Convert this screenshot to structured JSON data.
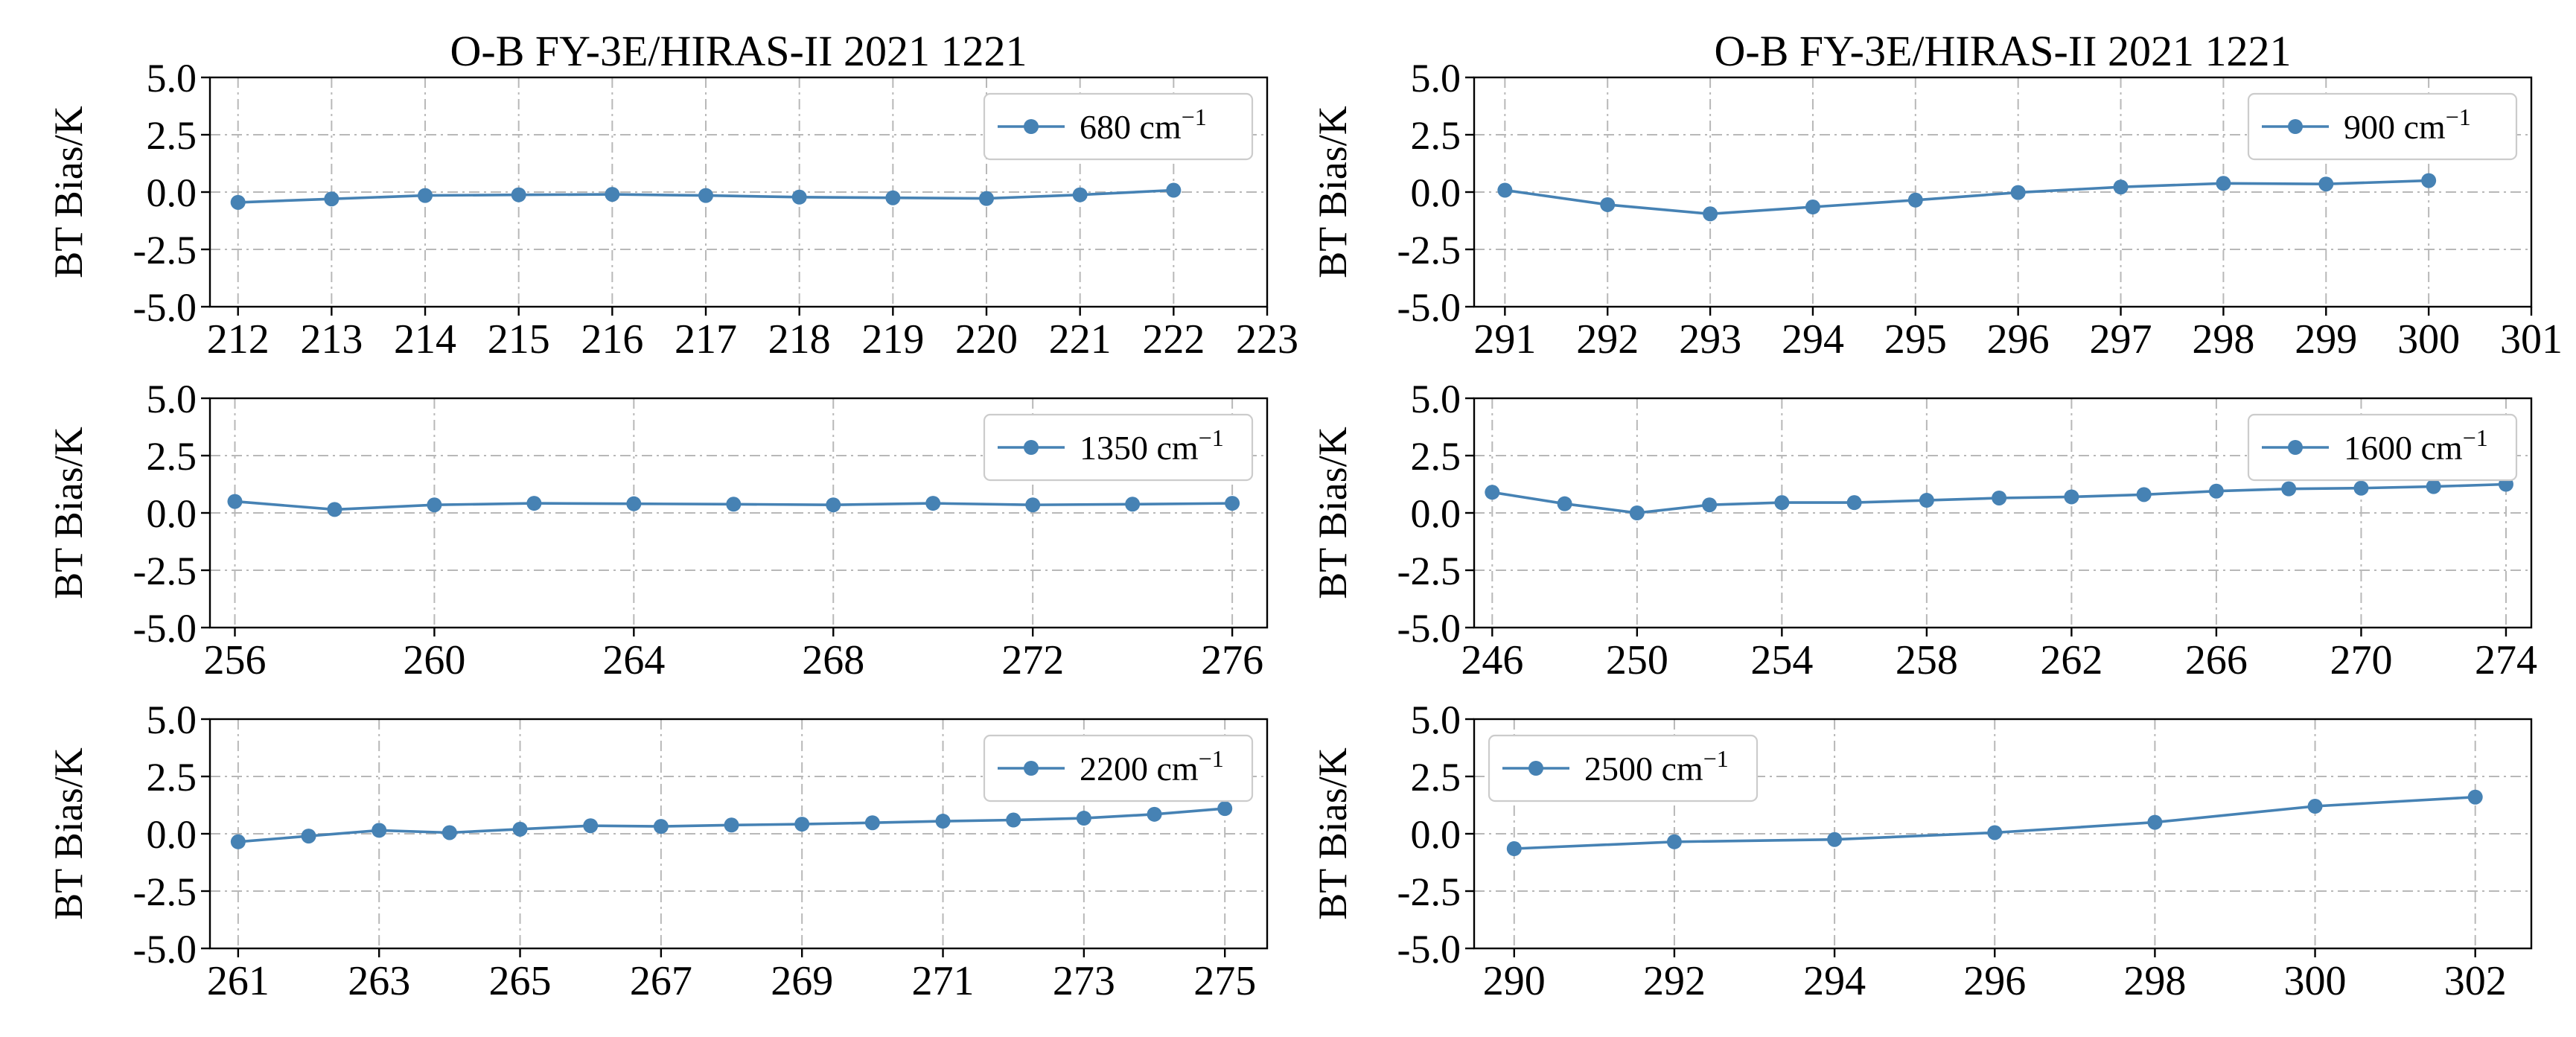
{
  "figure": {
    "color": "#4682b4"
  },
  "chart_data": [
    {
      "type": "line",
      "title": "O-B FY-3E/HIRAS-II 2021 1221",
      "ylabel": "BT Bias/K",
      "xlabel": "",
      "legend": {
        "label": "680 cm",
        "superscript": "−1",
        "position": "top-right"
      },
      "xlim": [
        211.7,
        223
      ],
      "ylim": [
        -5.0,
        5.0
      ],
      "x_ticks": [
        212,
        213,
        214,
        215,
        216,
        217,
        218,
        219,
        220,
        221,
        222,
        223
      ],
      "x_tick_labels": [
        "212",
        "213",
        "214",
        "215",
        "216",
        "217",
        "218",
        "219",
        "220",
        "221",
        "222",
        "223"
      ],
      "y_ticks": [
        5.0,
        2.5,
        0.0,
        -2.5,
        -5.0
      ],
      "y_tick_labels": [
        "5.0",
        "2.5",
        "0.0",
        "-2.5",
        "-5.0"
      ],
      "grid": true,
      "series": [
        {
          "name": "680 cm⁻¹",
          "x": [
            212,
            213,
            214,
            215,
            216,
            217,
            218,
            219,
            220,
            221,
            222
          ],
          "y": [
            -0.45,
            -0.3,
            -0.15,
            -0.12,
            -0.1,
            -0.15,
            -0.22,
            -0.25,
            -0.28,
            -0.12,
            0.08
          ]
        }
      ]
    },
    {
      "type": "line",
      "title": "O-B FY-3E/HIRAS-II 2021 1221",
      "ylabel": "BT Bias/K",
      "xlabel": "",
      "legend": {
        "label": "900 cm",
        "superscript": "−1",
        "position": "top-right"
      },
      "xlim": [
        290.7,
        301
      ],
      "ylim": [
        -5.0,
        5.0
      ],
      "x_ticks": [
        291,
        292,
        293,
        294,
        295,
        296,
        297,
        298,
        299,
        300,
        301
      ],
      "x_tick_labels": [
        "291",
        "292",
        "293",
        "294",
        "295",
        "296",
        "297",
        "298",
        "299",
        "300",
        "301"
      ],
      "y_ticks": [
        5.0,
        2.5,
        0.0,
        -2.5,
        -5.0
      ],
      "y_tick_labels": [
        "5.0",
        "2.5",
        "0.0",
        "-2.5",
        "-5.0"
      ],
      "grid": true,
      "series": [
        {
          "name": "900 cm⁻¹",
          "x": [
            291,
            292,
            293,
            294,
            295,
            296,
            297,
            298,
            299,
            300
          ],
          "y": [
            0.08,
            -0.55,
            -0.95,
            -0.65,
            -0.35,
            -0.02,
            0.22,
            0.38,
            0.35,
            0.5
          ]
        }
      ]
    },
    {
      "type": "line",
      "title": "",
      "ylabel": "BT Bias/K",
      "xlabel": "",
      "legend": {
        "label": "1350 cm",
        "superscript": "−1",
        "position": "top-right"
      },
      "xlim": [
        255.5,
        276.7
      ],
      "ylim": [
        -5.0,
        5.0
      ],
      "x_ticks": [
        256,
        260,
        264,
        268,
        272,
        276
      ],
      "x_tick_labels": [
        "256",
        "260",
        "264",
        "268",
        "272",
        "276"
      ],
      "y_ticks": [
        5.0,
        2.5,
        0.0,
        -2.5,
        -5.0
      ],
      "y_tick_labels": [
        "5.0",
        "2.5",
        "0.0",
        "-2.5",
        "-5.0"
      ],
      "grid": true,
      "series": [
        {
          "name": "1350 cm⁻¹",
          "x": [
            256,
            258,
            260,
            262,
            264,
            266,
            268,
            270,
            272,
            274,
            276
          ],
          "y": [
            0.5,
            0.15,
            0.35,
            0.42,
            0.4,
            0.38,
            0.35,
            0.42,
            0.35,
            0.38,
            0.42
          ]
        }
      ]
    },
    {
      "type": "line",
      "title": "",
      "ylabel": "BT Bias/K",
      "xlabel": "",
      "legend": {
        "label": "1600 cm",
        "superscript": "−1",
        "position": "top-right"
      },
      "xlim": [
        245.5,
        274.7
      ],
      "ylim": [
        -5.0,
        5.0
      ],
      "x_ticks": [
        246,
        250,
        254,
        258,
        262,
        266,
        270,
        274
      ],
      "x_tick_labels": [
        "246",
        "250",
        "254",
        "258",
        "262",
        "266",
        "270",
        "274"
      ],
      "y_ticks": [
        5.0,
        2.5,
        0.0,
        -2.5,
        -5.0
      ],
      "y_tick_labels": [
        "5.0",
        "2.5",
        "0.0",
        "-2.5",
        "-5.0"
      ],
      "grid": true,
      "series": [
        {
          "name": "1600 cm⁻¹",
          "x": [
            246,
            248,
            250,
            252,
            254,
            256,
            258,
            260,
            262,
            264,
            266,
            268,
            270,
            272,
            274
          ],
          "y": [
            0.9,
            0.4,
            0.0,
            0.35,
            0.45,
            0.45,
            0.55,
            0.65,
            0.7,
            0.8,
            0.95,
            1.05,
            1.08,
            1.15,
            1.25
          ]
        }
      ]
    },
    {
      "type": "line",
      "title": "",
      "ylabel": "BT Bias/K",
      "xlabel": "",
      "legend": {
        "label": "2200 cm",
        "superscript": "−1",
        "position": "top-right"
      },
      "xlim": [
        260.6,
        275.6
      ],
      "ylim": [
        -5.0,
        5.0
      ],
      "x_ticks": [
        261,
        263,
        265,
        267,
        269,
        271,
        273,
        275
      ],
      "x_tick_labels": [
        "261",
        "263",
        "265",
        "267",
        "269",
        "271",
        "273",
        "275"
      ],
      "y_ticks": [
        5.0,
        2.5,
        0.0,
        -2.5,
        -5.0
      ],
      "y_tick_labels": [
        "5.0",
        "2.5",
        "0.0",
        "-2.5",
        "-5.0"
      ],
      "grid": true,
      "series": [
        {
          "name": "2200 cm⁻¹",
          "x": [
            261,
            262,
            263,
            264,
            265,
            266,
            267,
            268,
            269,
            270,
            271,
            272,
            273,
            274,
            275
          ],
          "y": [
            -0.35,
            -0.1,
            0.15,
            0.05,
            0.2,
            0.35,
            0.32,
            0.38,
            0.42,
            0.48,
            0.55,
            0.6,
            0.68,
            0.85,
            1.1
          ]
        }
      ]
    },
    {
      "type": "line",
      "title": "",
      "ylabel": "BT Bias/K",
      "xlabel": "",
      "legend": {
        "label": "2500 cm",
        "superscript": "−1",
        "position": "top-left"
      },
      "xlim": [
        289.5,
        302.7
      ],
      "ylim": [
        -5.0,
        5.0
      ],
      "x_ticks": [
        290,
        292,
        294,
        296,
        298,
        300,
        302
      ],
      "x_tick_labels": [
        "290",
        "292",
        "294",
        "296",
        "298",
        "300",
        "302"
      ],
      "y_ticks": [
        5.0,
        2.5,
        0.0,
        -2.5,
        -5.0
      ],
      "y_tick_labels": [
        "5.0",
        "2.5",
        "0.0",
        "-2.5",
        "-5.0"
      ],
      "grid": true,
      "series": [
        {
          "name": "2500 cm⁻¹",
          "x": [
            290,
            292,
            294,
            296,
            298,
            300,
            302
          ],
          "y": [
            -0.65,
            -0.35,
            -0.25,
            0.05,
            0.5,
            1.2,
            1.6
          ]
        }
      ]
    }
  ]
}
